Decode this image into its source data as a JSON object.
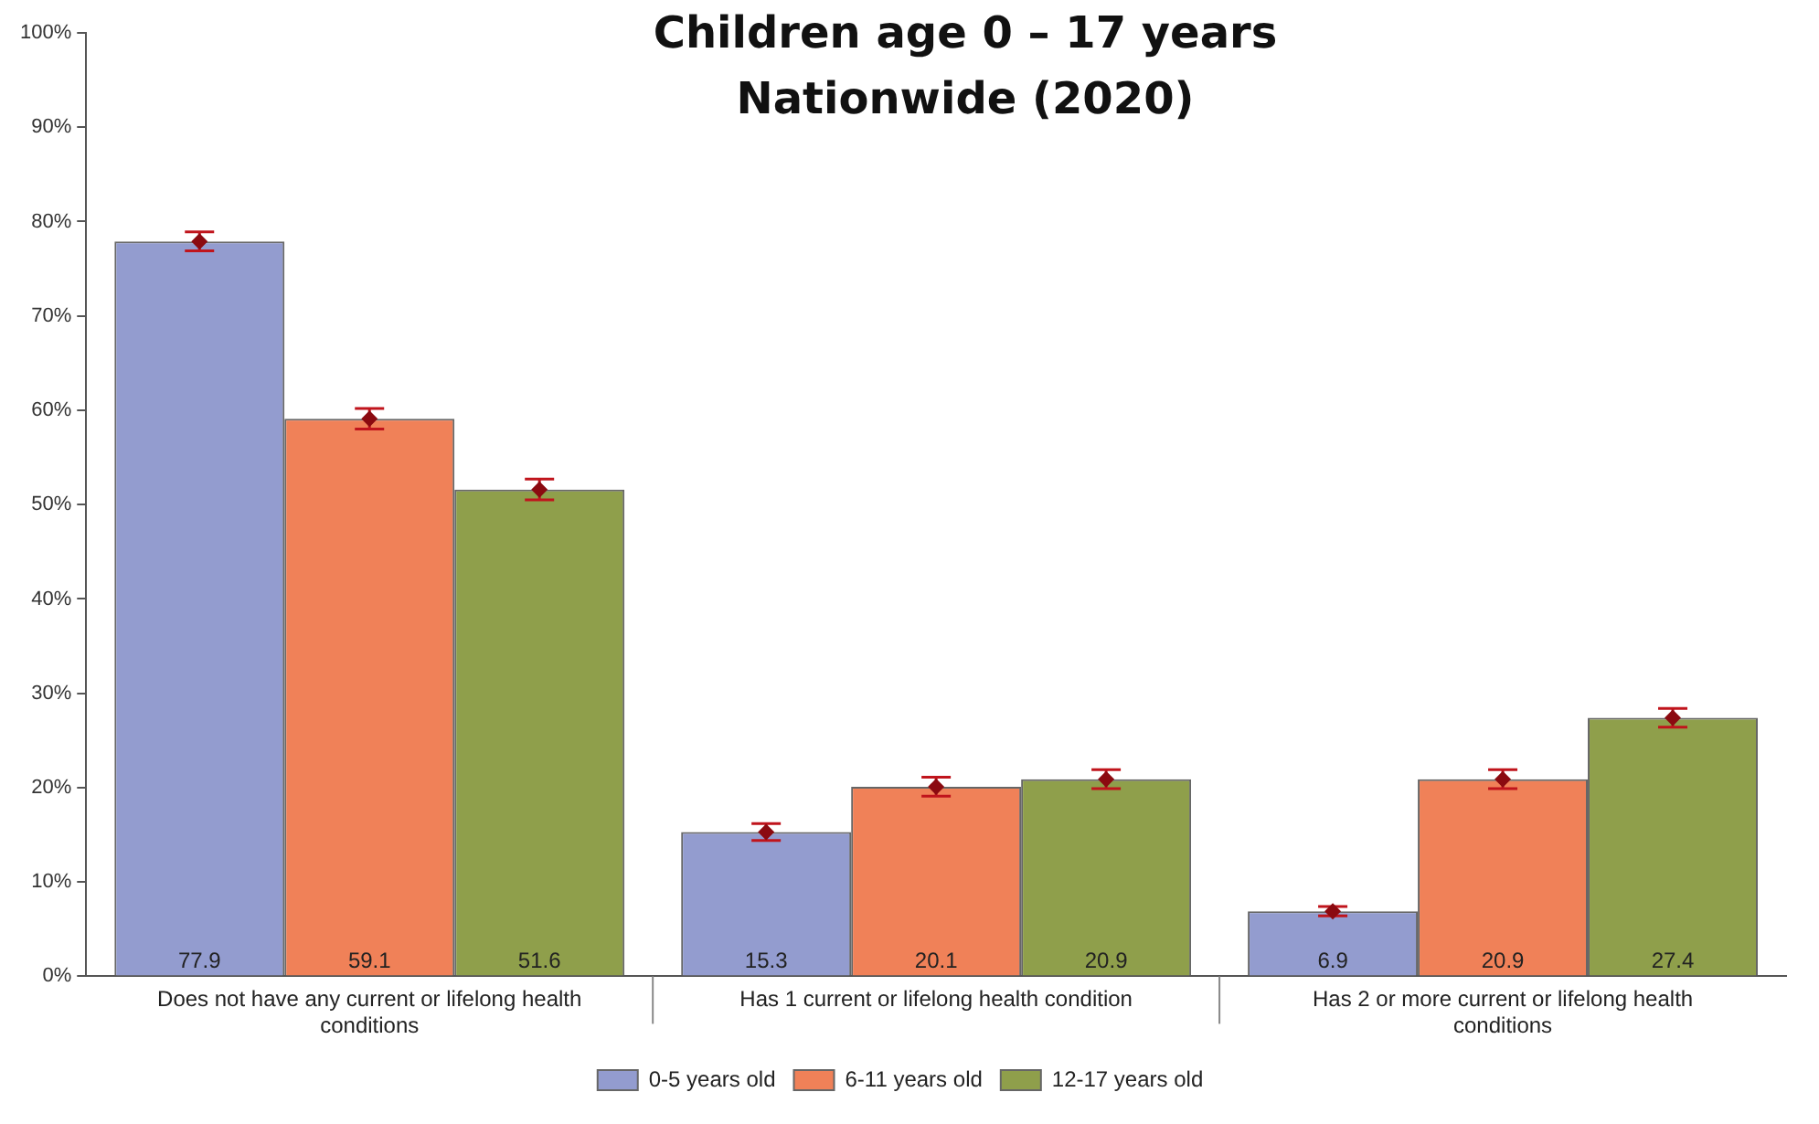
{
  "chart_data": {
    "type": "bar",
    "title": "Children age 0 – 17 years\nNationwide (2020)",
    "categories": [
      "Does not have any current or lifelong health conditions",
      "Has 1 current or lifelong health condition",
      "Has 2 or more current or lifelong health conditions"
    ],
    "series": [
      {
        "name": "0-5 years old",
        "color": "#939ccf",
        "values": [
          77.9,
          15.3,
          6.9
        ],
        "value_labels": [
          "77.9",
          "15.3",
          "6.9"
        ],
        "errors": [
          1,
          0.9,
          0.5
        ]
      },
      {
        "name": "6-11 years old",
        "color": "#f08158",
        "values": [
          59.1,
          20.1,
          20.9
        ],
        "value_labels": [
          "59.1",
          "20.1",
          "20.9"
        ],
        "errors": [
          1.1,
          1,
          1
        ]
      },
      {
        "name": "12-17 years old",
        "color": "#8f9f4b",
        "values": [
          51.6,
          20.9,
          27.4
        ],
        "value_labels": [
          "51.6",
          "20.9",
          "27.4"
        ],
        "errors": [
          1.1,
          1,
          1
        ]
      },
      {
        "type": "scatter",
        "color": "#8b0a10",
        "x": [
          "Does not have any current or lifelong health conditions",
          "Has 1 current or lifelong health condition",
          "Has 2 or more current or lifelong health conditions"
        ],
        "values": [
          77.9,
          15.3,
          6.9
        ]
      },
      {
        "type": "scatter",
        "color": "#8b0a10",
        "x": [
          "Does not have any current or lifelong health conditions",
          "Has 1 current or lifelong health condition",
          "Has 2 or more current or lifelong health conditions"
        ],
        "values": [
          59.1,
          20.1,
          20.9
        ]
      },
      {
        "type": "scatter",
        "color": "#8b0a10",
        "x": [
          "Does not have any current or lifelong health conditions",
          "Has 1 current or lifelong health condition",
          "Has 2 or more current or lifelong health conditions"
        ],
        "values": [
          51.6,
          20.9,
          27.4
        ]
      }
    ],
    "ylim": [
      0,
      100
    ],
    "yticks": [
      {
        "value": 0,
        "label": "0%"
      },
      {
        "value": 10,
        "label": "10%"
      },
      {
        "value": 20,
        "label": "20%"
      },
      {
        "value": 30,
        "label": "30%"
      },
      {
        "value": 40,
        "label": "40%"
      },
      {
        "value": 50,
        "label": "50%"
      },
      {
        "value": 60,
        "label": "60%"
      },
      {
        "value": 70,
        "label": "70%"
      },
      {
        "value": 80,
        "label": "80%"
      },
      {
        "value": 90,
        "label": "90%"
      },
      {
        "value": 100,
        "label": "100%"
      }
    ],
    "grid": false,
    "marker": "diamond",
    "legend": "bottom"
  }
}
